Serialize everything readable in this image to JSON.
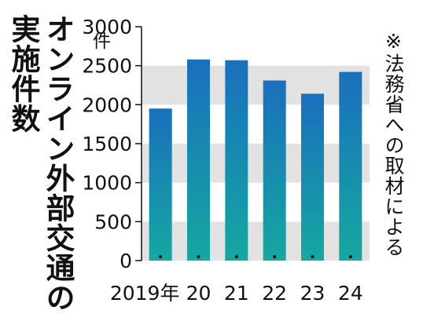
{
  "title_col1": "オンライン外部交通の",
  "title_col2": "実施件数",
  "source_note": "※法務省への取材による",
  "unit_label": "件",
  "colors": {
    "bar_top": "#1a6fbd",
    "bar_bottom": "#15a8a0",
    "band": "#e2e2e2"
  },
  "chart_data": {
    "type": "bar",
    "categories": [
      "2019年",
      "20",
      "21",
      "22",
      "23",
      "24"
    ],
    "values": [
      1950,
      2580,
      2570,
      2310,
      2140,
      2420
    ],
    "yticks": [
      "0",
      "500",
      "1000",
      "1500",
      "2000",
      "2500",
      "3000"
    ],
    "ylim": [
      0,
      3000
    ],
    "title": "オンライン外部交通の実施件数",
    "ylabel": "件",
    "xlabel": "",
    "grid": "alternating horizontal bands"
  }
}
